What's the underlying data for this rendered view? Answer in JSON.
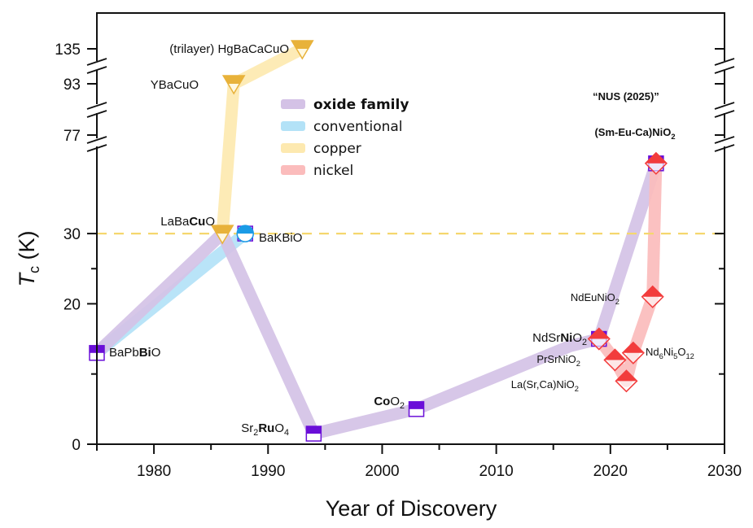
{
  "chart_data": {
    "type": "line",
    "title": "",
    "xlabel": "Year of Discovery",
    "ylabel": "T_c (K)",
    "ylabel_main": "T",
    "ylabel_sub": "c",
    "ylabel_unit": " (K)",
    "xlim": [
      1975,
      2030
    ],
    "x_ticks": [
      1980,
      1990,
      2000,
      2010,
      2020,
      2030
    ],
    "x_tick_labels": [
      "1980",
      "1990",
      "2000",
      "2010",
      "2020",
      "2030"
    ],
    "y_ticks": [
      0,
      20,
      30,
      77,
      93,
      135
    ],
    "y_tick_labels": [
      "0",
      "20",
      "30",
      "77",
      "93",
      "135"
    ],
    "y_axis_breaks": [
      "between 30 and 77",
      "between 77 and 93",
      "between 93 and 135"
    ],
    "reference_line": {
      "y": 30,
      "style": "dashed",
      "color": "#f5d76e"
    },
    "legend": {
      "position": "top-center",
      "entries": [
        {
          "label": "oxide family",
          "color": "#d4c2e6",
          "bold": true
        },
        {
          "label": "conventional",
          "color": "#b3e2f7",
          "bold": false
        },
        {
          "label": "copper",
          "color": "#fde9b0",
          "bold": false
        },
        {
          "label": "nickel",
          "color": "#fbbcbc",
          "bold": false
        }
      ]
    },
    "series": [
      {
        "name": "oxide family",
        "color": "#d4c2e6",
        "points": [
          [
            1975,
            13
          ],
          [
            1986,
            30
          ],
          [
            1994,
            1.5
          ],
          [
            2003,
            5
          ],
          [
            2016.5,
            14
          ],
          [
            2019,
            15
          ],
          [
            2024,
            40
          ]
        ]
      },
      {
        "name": "conventional",
        "color": "#b3e2f7",
        "points": [
          [
            1975,
            13
          ],
          [
            1988,
            30
          ]
        ]
      },
      {
        "name": "copper",
        "color": "#fde9b0",
        "points": [
          [
            1986,
            30
          ],
          [
            1987,
            93
          ],
          [
            1993,
            135
          ]
        ]
      },
      {
        "name": "nickel",
        "color": "#fbbcbc",
        "points": [
          [
            2019,
            15
          ],
          [
            2020.4,
            12
          ],
          [
            2021.4,
            9
          ],
          [
            2022,
            13
          ],
          [
            2023.7,
            21
          ],
          [
            2024,
            40
          ]
        ]
      }
    ],
    "markers": [
      {
        "label": "BaPbBiO",
        "label_parts": [
          [
            "BaPb",
            false
          ],
          [
            "Bi",
            true
          ],
          [
            "O",
            false
          ]
        ],
        "year": 1975,
        "tc": 13,
        "shape": "square",
        "color": "#6a0fd8"
      },
      {
        "label": "LaBaCuO",
        "label_parts": [
          [
            "LaBa",
            false
          ],
          [
            "Cu",
            true
          ],
          [
            "O",
            false
          ]
        ],
        "year": 1986,
        "tc": 30,
        "shape": "triangle-down",
        "color": "#e8b23a"
      },
      {
        "label": "BaKBiO",
        "label_parts": [
          [
            "BaKBiO",
            false
          ]
        ],
        "year": 1988,
        "tc": 30,
        "shape": "circle",
        "color": "#1a9be6"
      },
      {
        "label": "YBaCuO",
        "label_parts": [
          [
            "YBaCuO",
            false
          ]
        ],
        "year": 1987,
        "tc": 93,
        "shape": "triangle-down",
        "color": "#e8b23a"
      },
      {
        "label": "(trilayer) HgBaCaCuO",
        "label_parts": [
          [
            "(trilayer) HgBaCaCuO",
            false
          ]
        ],
        "year": 1993,
        "tc": 135,
        "shape": "triangle-down",
        "color": "#e8b23a"
      },
      {
        "label": "Sr2RuO4",
        "label_parts": [
          [
            "Sr",
            false
          ],
          [
            "2",
            "sub"
          ],
          [
            "Ru",
            true
          ],
          [
            "O",
            false
          ],
          [
            "4",
            "sub"
          ]
        ],
        "year": 1994,
        "tc": 1.5,
        "shape": "square",
        "color": "#6a0fd8"
      },
      {
        "label": "CoO2",
        "label_parts": [
          [
            "Co",
            true
          ],
          [
            "O",
            false
          ],
          [
            "2",
            "sub"
          ]
        ],
        "year": 2003,
        "tc": 5,
        "shape": "square",
        "color": "#6a0fd8"
      },
      {
        "label": "NdSrNiO2",
        "label_parts": [
          [
            "NdSr",
            false
          ],
          [
            "Ni",
            true
          ],
          [
            "O",
            false
          ],
          [
            "2",
            "sub"
          ]
        ],
        "year": 2019,
        "tc": 15,
        "shape": "diamond",
        "color": "#f23c3c"
      },
      {
        "label": "PrSrNiO2",
        "label_parts": [
          [
            "PrSrNiO",
            false
          ],
          [
            "2",
            "sub"
          ]
        ],
        "year": 2020.4,
        "tc": 12,
        "shape": "diamond",
        "color": "#f23c3c"
      },
      {
        "label": "La(Sr,Ca)NiO2",
        "label_parts": [
          [
            "La(Sr,Ca)NiO",
            false
          ],
          [
            "2",
            "sub"
          ]
        ],
        "year": 2021.4,
        "tc": 9,
        "shape": "diamond",
        "color": "#f23c3c"
      },
      {
        "label": "Nd6Ni5O12",
        "label_parts": [
          [
            "Nd",
            false
          ],
          [
            "6",
            "sub"
          ],
          [
            "Ni",
            false
          ],
          [
            "5",
            "sub"
          ],
          [
            "O",
            false
          ],
          [
            "12",
            "sub"
          ]
        ],
        "year": 2022,
        "tc": 13,
        "shape": "diamond",
        "color": "#f23c3c"
      },
      {
        "label": "NdEuNiO2",
        "label_parts": [
          [
            "NdEuNiO",
            false
          ],
          [
            "2",
            "sub"
          ]
        ],
        "year": 2023.7,
        "tc": 21,
        "shape": "diamond",
        "color": "#f23c3c"
      },
      {
        "label": "(Sm-Eu-Ca)NiO2",
        "label_parts": [
          [
            "(Sm-Eu-Ca)NiO",
            true
          ],
          [
            "2",
            "sub"
          ]
        ],
        "year": 2024,
        "tc": 40,
        "shape": "diamond",
        "color": "#f23c3c"
      }
    ],
    "annotations": [
      {
        "text": "“NUS (2025)”",
        "bold": true
      }
    ],
    "grid": false
  }
}
